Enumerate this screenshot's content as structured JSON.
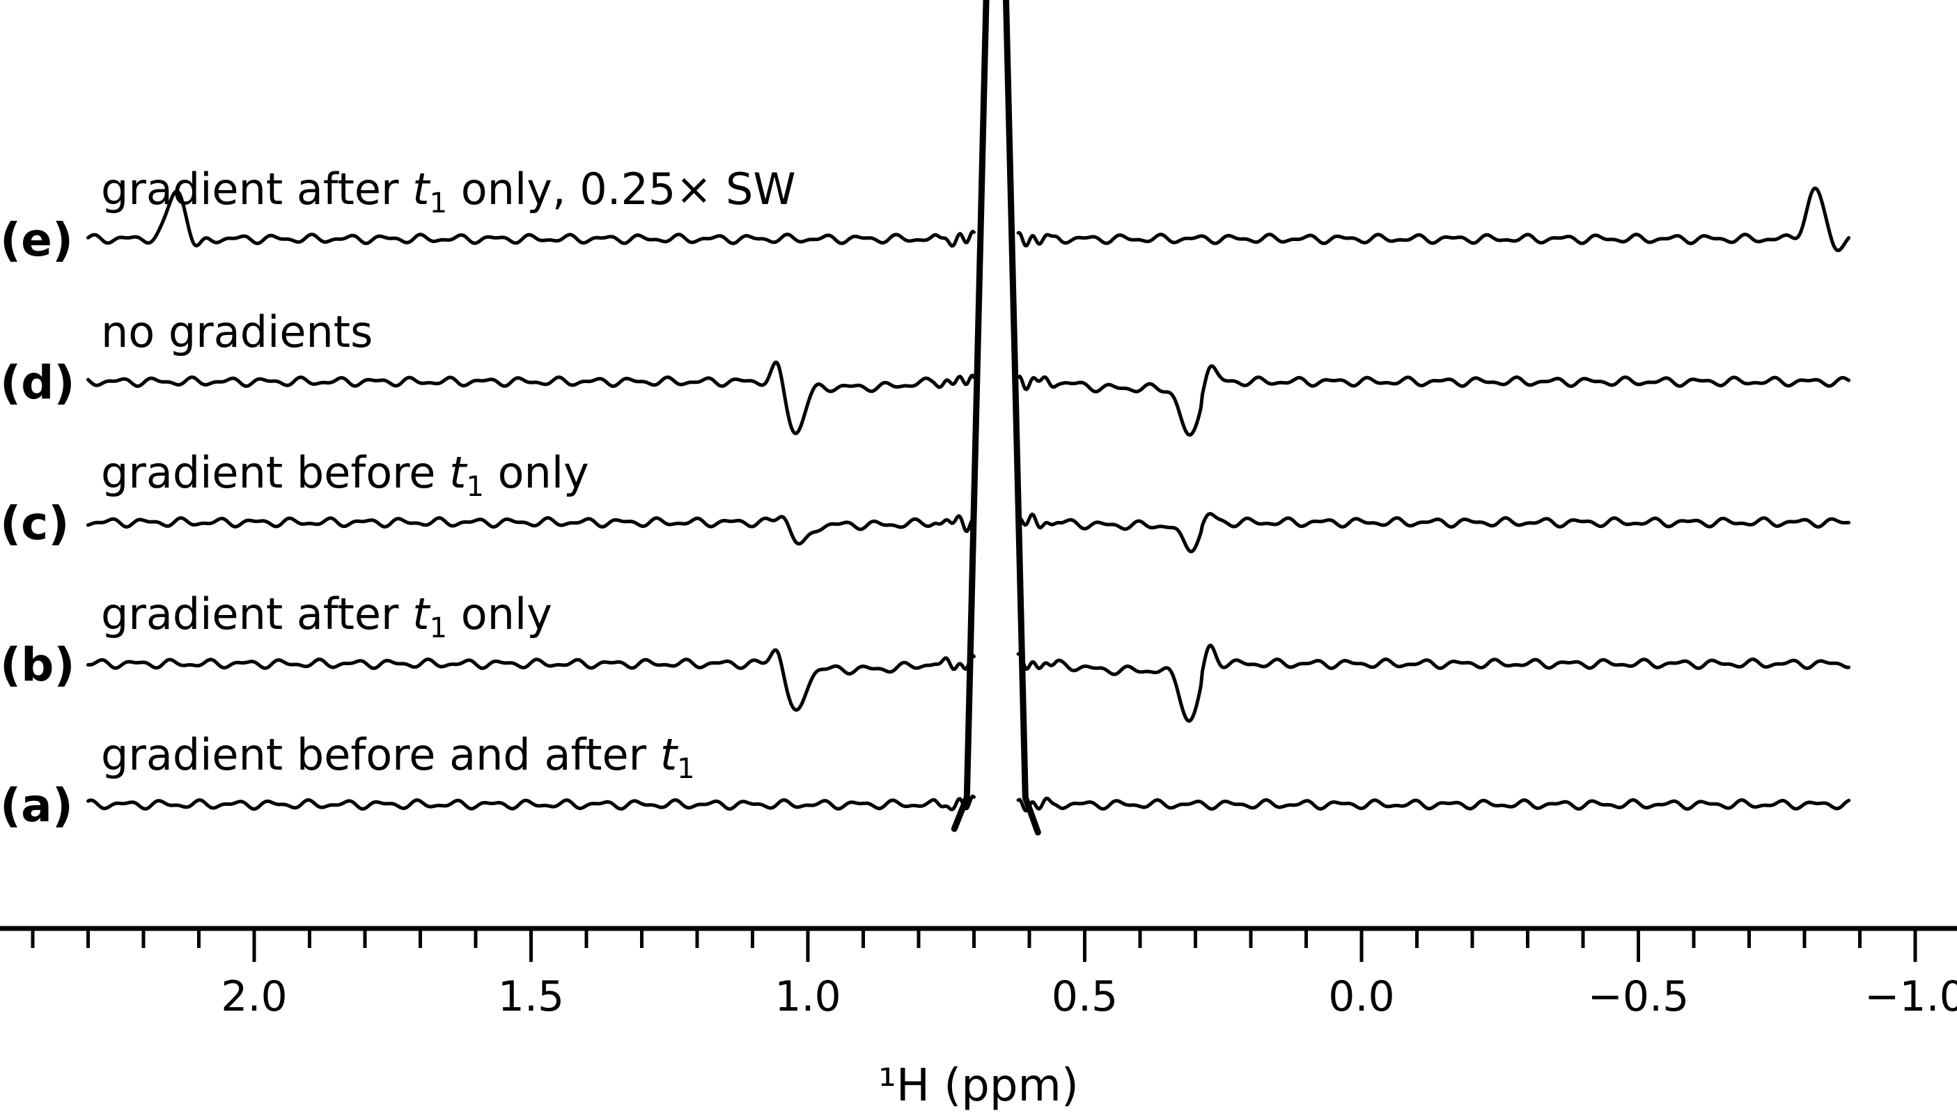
{
  "chart_data": {
    "type": "line",
    "xlabel": "¹H (ppm)",
    "xlim": [
      2.4,
      -1.05
    ],
    "x_reversed": true,
    "x_ticks": [
      2.0,
      1.5,
      1.0,
      0.5,
      0.0,
      -0.5,
      -1.0
    ],
    "x_tick_labels": [
      "2.0",
      "1.5",
      "1.0",
      "0.5",
      "0.0",
      "−0.5",
      "−1.0"
    ],
    "minor_tick_step": 0.1,
    "trace_x_range": [
      2.3,
      -0.88
    ],
    "main_peak_center": 0.66,
    "series": [
      {
        "label": "(a)",
        "caption_parts": [
          "gradient before and after ",
          "t",
          "1",
          ""
        ],
        "features": []
      },
      {
        "label": "(b)",
        "caption_parts": [
          "gradient after ",
          "t",
          "1",
          " only"
        ],
        "features": [
          {
            "center": 1.04,
            "amplitude": 1
          },
          {
            "center": 0.29,
            "amplitude": 1
          }
        ]
      },
      {
        "label": "(c)",
        "caption_parts": [
          "gradient before ",
          "t",
          "1",
          " only"
        ],
        "features": [
          {
            "center": 1.03,
            "amplitude": 0.45
          },
          {
            "center": 0.29,
            "amplitude": 0.45
          }
        ]
      },
      {
        "label": "(d)",
        "caption_parts": [
          "no gradients",
          "",
          "",
          ""
        ],
        "features": [
          {
            "center": 1.04,
            "amplitude": 1
          },
          {
            "center": 0.29,
            "amplitude": 1
          }
        ]
      },
      {
        "label": "(e)",
        "caption_parts": [
          "gradient after ",
          "t",
          "1",
          " only, 0.25× SW"
        ],
        "features": [
          {
            "center": 2.14,
            "amplitude": 1,
            "shape": "peak"
          },
          {
            "center": -0.82,
            "amplitude": 1,
            "shape": "peak"
          }
        ]
      }
    ]
  }
}
